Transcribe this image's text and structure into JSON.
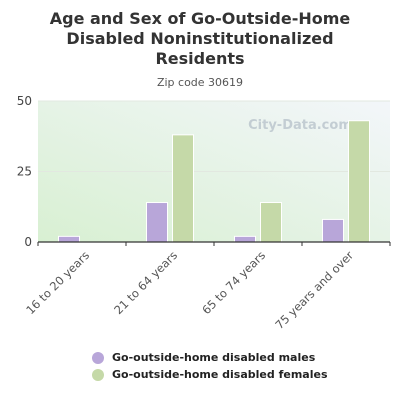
{
  "title_line1": "Age and Sex of Go-Outside-Home",
  "title_line2": "Disabled Noninstitutionalized",
  "title_line3": "Residents",
  "subtitle": "Zip code 30619",
  "watermark": "City-Data.com",
  "colors": {
    "males": "#b8a6d9",
    "females": "#c5d9a8",
    "plot_bg_top": "#f3f6fa",
    "plot_bg_bottom": "#d8f0d2",
    "axis": "#333333"
  },
  "legend": {
    "males": "Go-outside-home disabled males",
    "females": "Go-outside-home disabled females"
  },
  "chart_data": {
    "type": "bar",
    "title": "Age and Sex of Go-Outside-Home Disabled Noninstitutionalized Residents",
    "subtitle": "Zip code 30619",
    "categories": [
      "16 to 20 years",
      "21 to 64 years",
      "65 to 74 years",
      "75 years and over"
    ],
    "series": [
      {
        "name": "Go-outside-home disabled males",
        "values": [
          2,
          14,
          2,
          8
        ]
      },
      {
        "name": "Go-outside-home disabled females",
        "values": [
          0,
          38,
          14,
          43
        ]
      }
    ],
    "ylim": [
      0,
      50
    ],
    "yticks": [
      0,
      25,
      50
    ],
    "grid": true,
    "legend_position": "bottom"
  }
}
